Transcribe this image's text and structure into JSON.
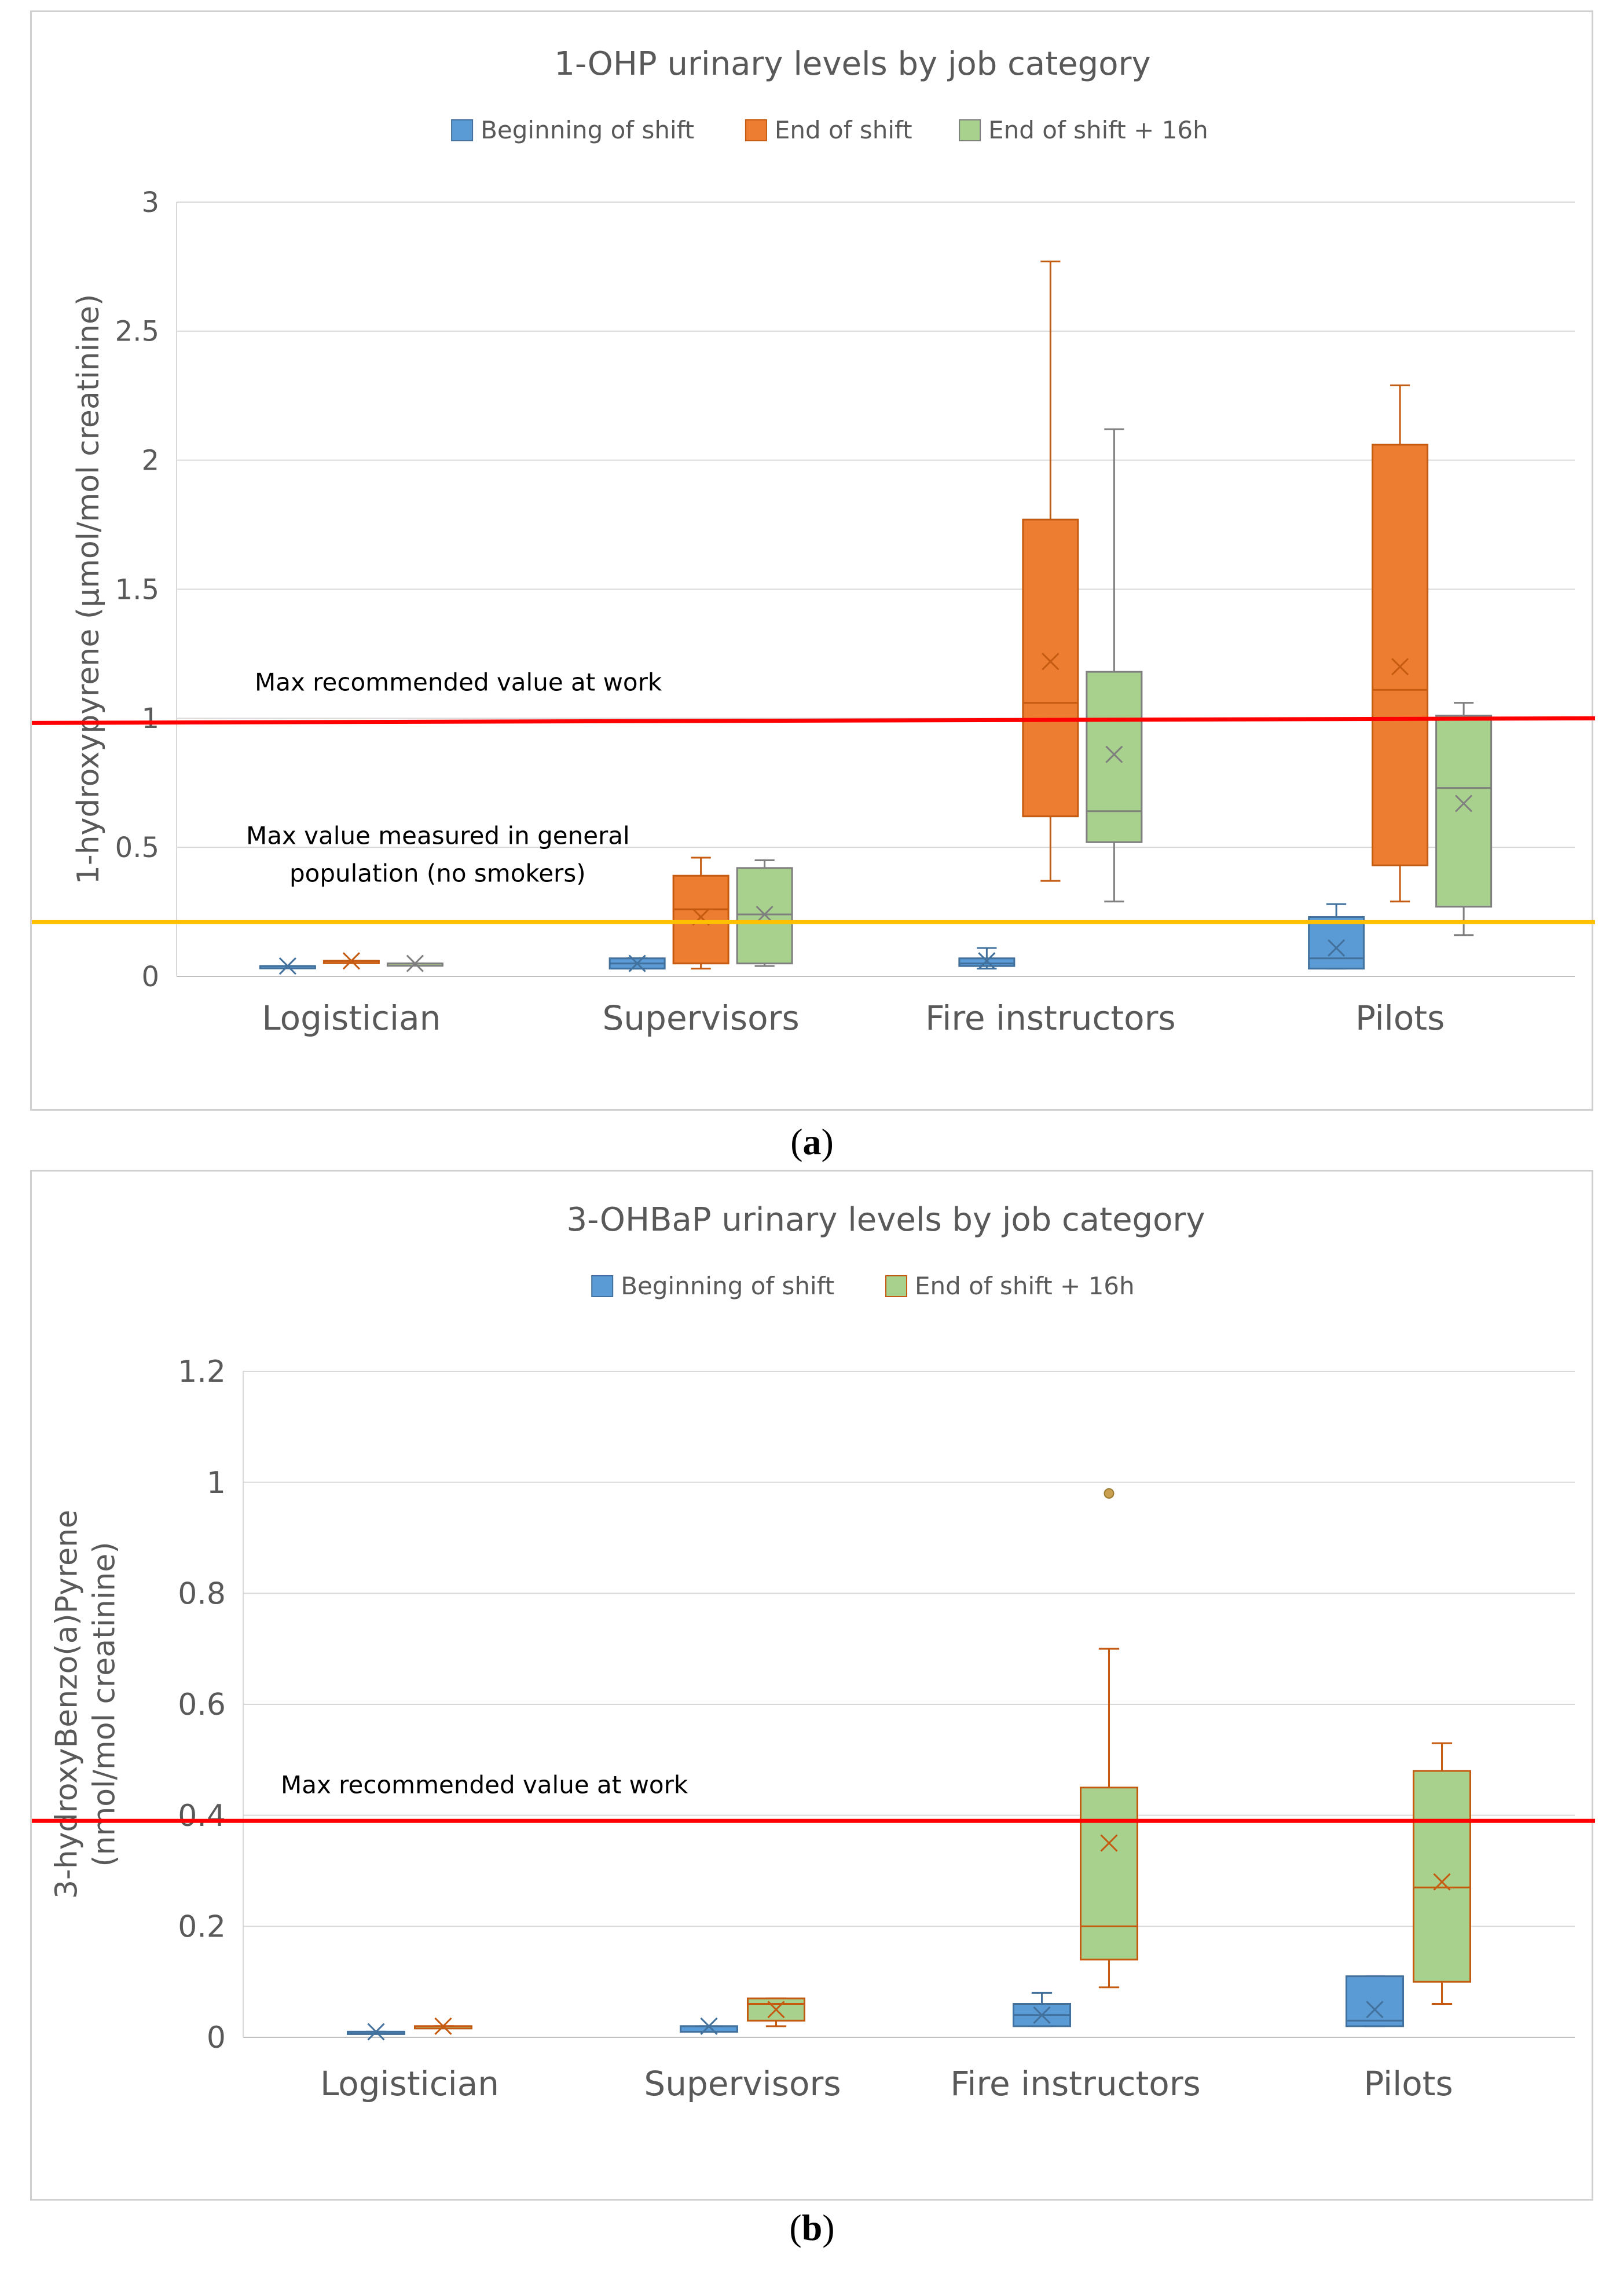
{
  "chart_data": [
    {
      "id": "a",
      "type": "box",
      "title": "1-OHP urinary levels by job category",
      "ylabel": "1-hydroxypyrene (µmol/mol creatinine)",
      "xlabel": "",
      "ylim": [
        0,
        3
      ],
      "yticks": [
        0,
        0.5,
        1,
        1.5,
        2,
        2.5,
        3
      ],
      "ytick_labels": [
        "0",
        "0.5",
        "1",
        "1.5",
        "2",
        "2.5",
        "3"
      ],
      "grid": true,
      "legend_position": "top-center",
      "categories": [
        "Logistician",
        "Supervisors",
        "Fire instructors",
        "Pilots"
      ],
      "series": [
        {
          "name": "Beginning of shift",
          "color": "#5B9BD5",
          "stroke": "#41719C",
          "boxes": [
            {
              "min": 0.04,
              "q1": 0.04,
              "median": 0.04,
              "q3": 0.04,
              "max": 0.04,
              "mean": 0.04
            },
            {
              "min": 0.03,
              "q1": 0.03,
              "median": 0.05,
              "q3": 0.07,
              "max": 0.07,
              "mean": 0.05
            },
            {
              "min": 0.03,
              "q1": 0.04,
              "median": 0.05,
              "q3": 0.07,
              "max": 0.11,
              "mean": 0.06
            },
            {
              "min": 0.03,
              "q1": 0.03,
              "median": 0.07,
              "q3": 0.23,
              "max": 0.28,
              "mean": 0.11
            }
          ]
        },
        {
          "name": "End of shift",
          "color": "#ED7D31",
          "stroke": "#C55A11",
          "boxes": [
            {
              "min": 0.06,
              "q1": 0.06,
              "median": 0.06,
              "q3": 0.06,
              "max": 0.06,
              "mean": 0.06
            },
            {
              "min": 0.03,
              "q1": 0.05,
              "median": 0.26,
              "q3": 0.39,
              "max": 0.46,
              "mean": 0.23
            },
            {
              "min": 0.37,
              "q1": 0.62,
              "median": 1.06,
              "q3": 1.77,
              "max": 2.77,
              "mean": 1.22
            },
            {
              "min": 0.29,
              "q1": 0.43,
              "median": 1.11,
              "q3": 2.06,
              "max": 2.29,
              "mean": 1.2
            }
          ]
        },
        {
          "name": "End of shift + 16h",
          "color": "#A9D18E",
          "stroke": "#7F7F7F",
          "boxes": [
            {
              "min": 0.05,
              "q1": 0.05,
              "median": 0.05,
              "q3": 0.05,
              "max": 0.05,
              "mean": 0.05
            },
            {
              "min": 0.04,
              "q1": 0.05,
              "median": 0.24,
              "q3": 0.42,
              "max": 0.45,
              "mean": 0.24
            },
            {
              "min": 0.29,
              "q1": 0.52,
              "median": 0.64,
              "q3": 1.18,
              "max": 2.12,
              "mean": 0.86
            },
            {
              "min": 0.16,
              "q1": 0.27,
              "median": 0.73,
              "q3": 1.01,
              "max": 1.06,
              "mean": 0.67
            }
          ]
        }
      ],
      "reference_lines": [
        {
          "label": "Max recommended value at work",
          "value": 1.0,
          "color": "#FF0000"
        },
        {
          "label_lines": [
            "Max value measured in general",
            "population (no smokers)"
          ],
          "value": 0.21,
          "color": "#FFC000"
        }
      ],
      "outliers": []
    },
    {
      "id": "b",
      "type": "box",
      "title": "3-OHBaP urinary levels by job category",
      "ylabel_lines": [
        "3-hydroxyBenzo(a)Pyrene",
        "(nmol/mol creatinine)"
      ],
      "xlabel": "",
      "ylim": [
        0,
        1.2
      ],
      "yticks": [
        0,
        0.2,
        0.4,
        0.6,
        0.8,
        1,
        1.2
      ],
      "ytick_labels": [
        "0",
        "0.2",
        "0.4",
        "0.6",
        "0.8",
        "1",
        "1.2"
      ],
      "grid": true,
      "legend_position": "top-center",
      "categories": [
        "Logistician",
        "Supervisors",
        "Fire instructors",
        "Pilots"
      ],
      "series": [
        {
          "name": "Beginning of shift",
          "color": "#5B9BD5",
          "stroke": "#41719C",
          "boxes": [
            {
              "min": 0.01,
              "q1": 0.01,
              "median": 0.01,
              "q3": 0.01,
              "max": 0.01,
              "mean": 0.01
            },
            {
              "min": 0.01,
              "q1": 0.01,
              "median": 0.02,
              "q3": 0.02,
              "max": 0.02,
              "mean": 0.02
            },
            {
              "min": 0.02,
              "q1": 0.02,
              "median": 0.04,
              "q3": 0.06,
              "max": 0.08,
              "mean": 0.04
            },
            {
              "min": 0.02,
              "q1": 0.02,
              "median": 0.03,
              "q3": 0.11,
              "max": 0.11,
              "mean": 0.05
            }
          ]
        },
        {
          "name": "End of shift + 16h",
          "color": "#A9D18E",
          "stroke": "#C55A11",
          "boxes": [
            {
              "min": 0.02,
              "q1": 0.02,
              "median": 0.02,
              "q3": 0.02,
              "max": 0.02,
              "mean": 0.02
            },
            {
              "min": 0.02,
              "q1": 0.03,
              "median": 0.06,
              "q3": 0.07,
              "max": 0.07,
              "mean": 0.05
            },
            {
              "min": 0.09,
              "q1": 0.14,
              "median": 0.2,
              "q3": 0.45,
              "max": 0.7,
              "mean": 0.35
            },
            {
              "min": 0.06,
              "q1": 0.1,
              "median": 0.27,
              "q3": 0.48,
              "max": 0.53,
              "mean": 0.28
            }
          ]
        }
      ],
      "reference_lines": [
        {
          "label": "Max recommended value at work",
          "value": 0.39,
          "color": "#FF0000"
        }
      ],
      "outliers": [
        {
          "category": "Fire instructors",
          "series": "End of shift + 16h",
          "value": 0.98,
          "color": "#C9A04F"
        }
      ]
    }
  ],
  "sublabels": {
    "a_letter": "a",
    "b_letter": "b"
  }
}
